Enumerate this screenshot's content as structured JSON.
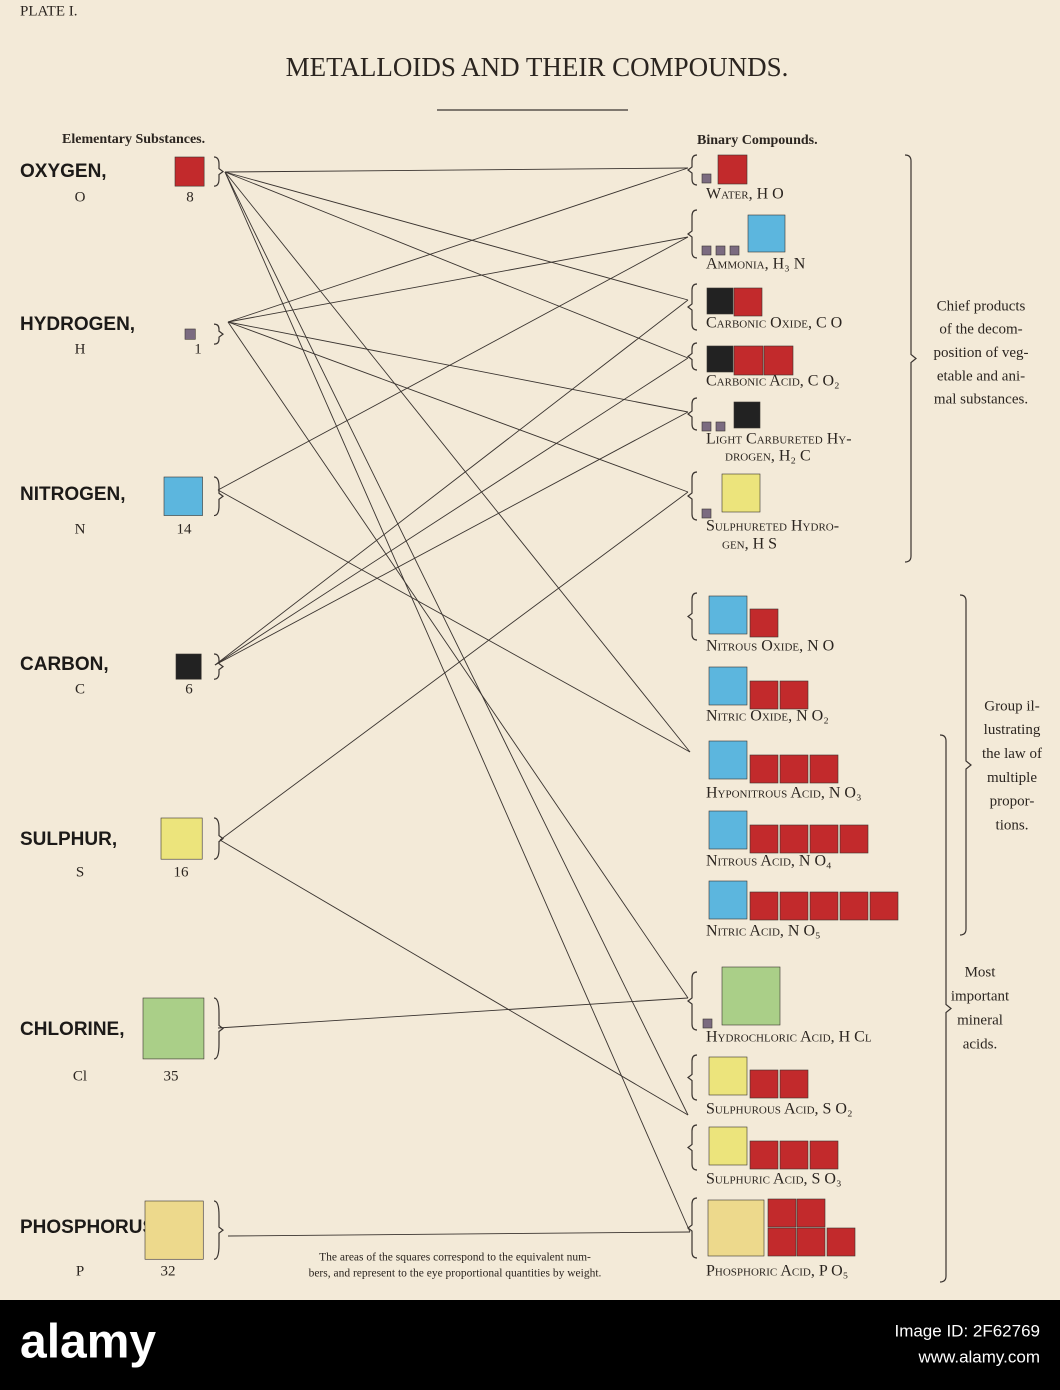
{
  "header": {
    "plate": "PLATE I.",
    "title": "METALLOIDS AND THEIR COMPOUNDS."
  },
  "elements": {
    "heading": "Elementary Substances.",
    "items": [
      {
        "name": "OXYGEN,",
        "symbol": "O",
        "weight": 8
      },
      {
        "name": "HYDROGEN,",
        "symbol": "H",
        "weight": 1
      },
      {
        "name": "NITROGEN,",
        "symbol": "N",
        "weight": 14
      },
      {
        "name": "CARBON,",
        "symbol": "C",
        "weight": 6
      },
      {
        "name": "SULPHUR,",
        "symbol": "S",
        "weight": 16
      },
      {
        "name": "CHLORINE,",
        "symbol": "Cl",
        "weight": 35
      },
      {
        "name": "PHOSPHORUS,",
        "symbol": "P",
        "weight": 32
      }
    ]
  },
  "compounds": {
    "heading": "Binary Compounds.",
    "items": [
      {
        "lines": [
          "Water, H O"
        ]
      },
      {
        "lines": [
          "Ammonia, H₃ N"
        ]
      },
      {
        "lines": [
          "Carbonic Oxide, C O"
        ]
      },
      {
        "lines": [
          "Carbonic Acid, C O₂"
        ]
      },
      {
        "lines": [
          "Light Carbureted Hy-",
          "drogen, H₂ C"
        ]
      },
      {
        "lines": [
          "Sulphureted Hydro-",
          "gen, H S"
        ]
      },
      {
        "lines": [
          "Nitrous Oxide, N O"
        ]
      },
      {
        "lines": [
          "Nitric Oxide, N O₂"
        ]
      },
      {
        "lines": [
          "Hyponitrous Acid, N O₃"
        ]
      },
      {
        "lines": [
          "Nitrous Acid, N O₄"
        ]
      },
      {
        "lines": [
          "Nitric Acid, N O₅"
        ]
      },
      {
        "lines": [
          "Hydrochloric Acid, H Cl"
        ]
      },
      {
        "lines": [
          "Sulphurous Acid, S O₂"
        ]
      },
      {
        "lines": [
          "Sulphuric Acid, S O₃"
        ]
      },
      {
        "lines": [
          "Phosphoric Acid, P O₅"
        ]
      }
    ]
  },
  "groups": [
    {
      "lines": [
        "Chief products",
        "of the decom-",
        "position of veg-",
        "etable and ani-",
        "mal substances."
      ]
    },
    {
      "lines": [
        "Group il-",
        "lustrating",
        "the law of",
        "multiple",
        "propor-",
        "tions."
      ]
    },
    {
      "lines": [
        "Most",
        "important",
        "mineral",
        "acids."
      ]
    }
  ],
  "footnote": [
    "The areas of the squares correspond to the equivalent num-",
    "bers, and represent to the eye proportional quantities by weight."
  ],
  "banner": {
    "brand": "alamy",
    "image_id": "Image ID: 2F62769",
    "url": "www.alamy.com"
  }
}
